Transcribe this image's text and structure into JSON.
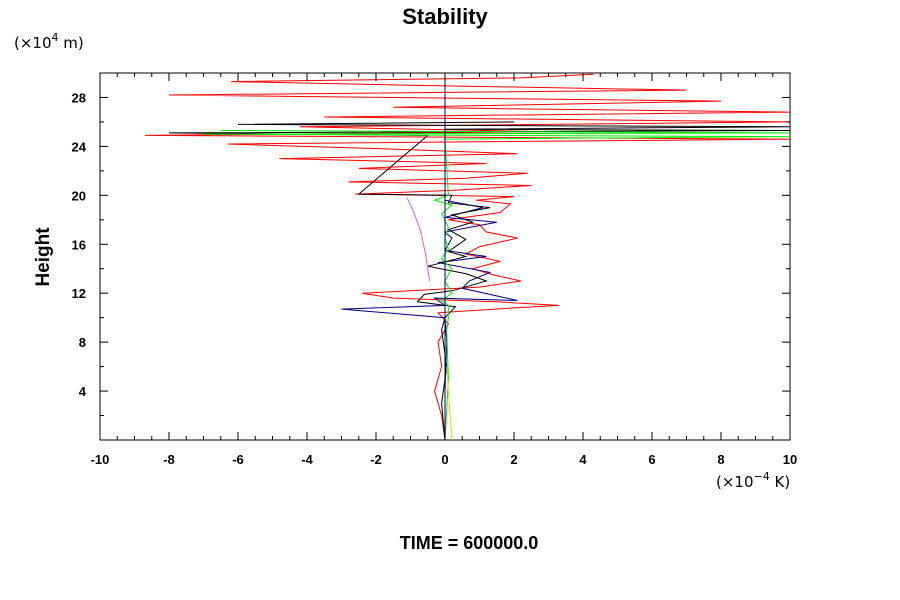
{
  "chart_data": {
    "type": "line",
    "title": "Stability",
    "xlabel": "",
    "ylabel": "Height",
    "x_unit": {
      "prefix": "(×10",
      "exp": "−4",
      "suffix": " K)"
    },
    "y_unit": {
      "prefix": "(×10",
      "exp": "4",
      "suffix": " m)"
    },
    "xlim": [
      -10,
      10
    ],
    "ylim": [
      0,
      30
    ],
    "x_ticks": [
      "-10",
      "-8",
      "-6",
      "-4",
      "-2",
      "0",
      "2",
      "4",
      "6",
      "8",
      "10"
    ],
    "y_ticks": [
      "4",
      "8",
      "12",
      "16",
      "20",
      "24",
      "28"
    ],
    "footer": "TIME = 600000.0",
    "series": [
      {
        "name": "red",
        "color": "#ff0000",
        "points": [
          [
            0,
            0
          ],
          [
            -0.1,
            2
          ],
          [
            -0.3,
            4
          ],
          [
            -0.1,
            6
          ],
          [
            -0.2,
            8
          ],
          [
            0.1,
            9.5
          ],
          [
            -0.2,
            10.4
          ],
          [
            2,
            10.8
          ],
          [
            3.3,
            11
          ],
          [
            1.5,
            11.3
          ],
          [
            -1.5,
            11.6
          ],
          [
            -2.4,
            12
          ],
          [
            -1,
            12.2
          ],
          [
            1,
            12.5
          ],
          [
            2.2,
            13
          ],
          [
            1.4,
            13.5
          ],
          [
            0.8,
            14
          ],
          [
            1.6,
            14.6
          ],
          [
            0.6,
            15.2
          ],
          [
            1,
            15.8
          ],
          [
            2.1,
            16.5
          ],
          [
            1.2,
            17
          ],
          [
            1,
            17.6
          ],
          [
            0.1,
            18
          ],
          [
            1.6,
            18.6
          ],
          [
            1.9,
            19.3
          ],
          [
            0.9,
            19.6
          ],
          [
            2,
            19.9
          ],
          [
            -2.6,
            20.1
          ],
          [
            0.2,
            20.4
          ],
          [
            2.5,
            20.8
          ],
          [
            -2.8,
            21.1
          ],
          [
            0.6,
            21.4
          ],
          [
            2.4,
            21.8
          ],
          [
            -2.5,
            22.2
          ],
          [
            1.2,
            22.6
          ],
          [
            -4.8,
            23
          ],
          [
            2.1,
            23.4
          ],
          [
            -1.8,
            23.8
          ],
          [
            -6.3,
            24.2
          ],
          [
            10,
            24.6
          ],
          [
            -8.7,
            24.9
          ],
          [
            2.9,
            25.2
          ],
          [
            -4.2,
            25.6
          ],
          [
            10,
            26
          ],
          [
            -3.5,
            26.4
          ],
          [
            10,
            26.8
          ],
          [
            -1.5,
            27.2
          ],
          [
            8,
            27.7
          ],
          [
            -8,
            28.2
          ],
          [
            7,
            28.6
          ],
          [
            -1,
            29
          ],
          [
            -6.2,
            29.3
          ],
          [
            2.2,
            29.6
          ],
          [
            4.3,
            29.9
          ]
        ]
      },
      {
        "name": "navy",
        "color": "#000080",
        "points": [
          [
            0,
            0
          ],
          [
            0,
            4
          ],
          [
            0.05,
            8
          ],
          [
            0,
            10
          ],
          [
            -3,
            10.7
          ],
          [
            0,
            11
          ],
          [
            -0.3,
            11.6
          ],
          [
            2.1,
            11.4
          ],
          [
            0.5,
            12.4
          ],
          [
            0.7,
            13
          ],
          [
            1.3,
            13.7
          ],
          [
            -0.2,
            14.5
          ],
          [
            1.2,
            15
          ],
          [
            0,
            15.5
          ],
          [
            0.2,
            16.5
          ],
          [
            0,
            17
          ],
          [
            1.5,
            17.8
          ],
          [
            0,
            18.2
          ],
          [
            1.1,
            19
          ],
          [
            0,
            19.6
          ],
          [
            0,
            20
          ],
          [
            0,
            30
          ]
        ]
      },
      {
        "name": "black",
        "color": "#000000",
        "points": [
          [
            0,
            0
          ],
          [
            -0.1,
            3
          ],
          [
            0.05,
            6
          ],
          [
            -0.1,
            9
          ],
          [
            0,
            10
          ],
          [
            0.3,
            10.9
          ],
          [
            -0.8,
            11.3
          ],
          [
            -0.6,
            11.9
          ],
          [
            0.2,
            12.2
          ],
          [
            1.2,
            13
          ],
          [
            0.6,
            13.6
          ],
          [
            -0.5,
            14.2
          ],
          [
            0.6,
            15
          ],
          [
            0.1,
            15.4
          ],
          [
            0.6,
            16.4
          ],
          [
            0.1,
            17.2
          ],
          [
            0.8,
            17.8
          ],
          [
            0.2,
            18.4
          ],
          [
            1.3,
            19
          ],
          [
            0.1,
            19.4
          ],
          [
            0.2,
            20
          ],
          [
            -2.5,
            20.1
          ],
          [
            -0.5,
            24.9
          ],
          [
            -8,
            25.1
          ],
          [
            10,
            25.3
          ],
          [
            0,
            25.4
          ],
          [
            10,
            25.6
          ],
          [
            -6,
            25.8
          ],
          [
            2,
            26
          ]
        ]
      },
      {
        "name": "green",
        "color": "#00ee00",
        "points": [
          [
            0,
            0
          ],
          [
            0.1,
            5
          ],
          [
            0.05,
            9
          ],
          [
            0.1,
            10
          ],
          [
            0.1,
            11
          ],
          [
            -0.1,
            11.4
          ],
          [
            0.2,
            12
          ],
          [
            0,
            13
          ],
          [
            0.2,
            14
          ],
          [
            -0.1,
            14.8
          ],
          [
            0.1,
            15.6
          ],
          [
            0,
            16.5
          ],
          [
            0.1,
            17.4
          ],
          [
            -0.1,
            18.5
          ],
          [
            0.2,
            19.2
          ],
          [
            -0.3,
            19.6
          ],
          [
            0.1,
            20
          ],
          [
            0,
            24.6
          ],
          [
            10,
            24.8
          ],
          [
            -7,
            25
          ],
          [
            10,
            25.1
          ],
          [
            -6.5,
            25.3
          ]
        ]
      },
      {
        "name": "violet",
        "color": "#cc66cc",
        "points": [
          [
            -1.1,
            19.8
          ],
          [
            -0.9,
            18.6
          ],
          [
            -0.7,
            17
          ],
          [
            -0.55,
            15
          ],
          [
            -0.45,
            13
          ]
        ]
      },
      {
        "name": "yellow",
        "color": "#dddd00",
        "points": [
          [
            0.2,
            0
          ],
          [
            0.15,
            2
          ],
          [
            0.1,
            4
          ],
          [
            0.05,
            6
          ]
        ]
      }
    ]
  }
}
